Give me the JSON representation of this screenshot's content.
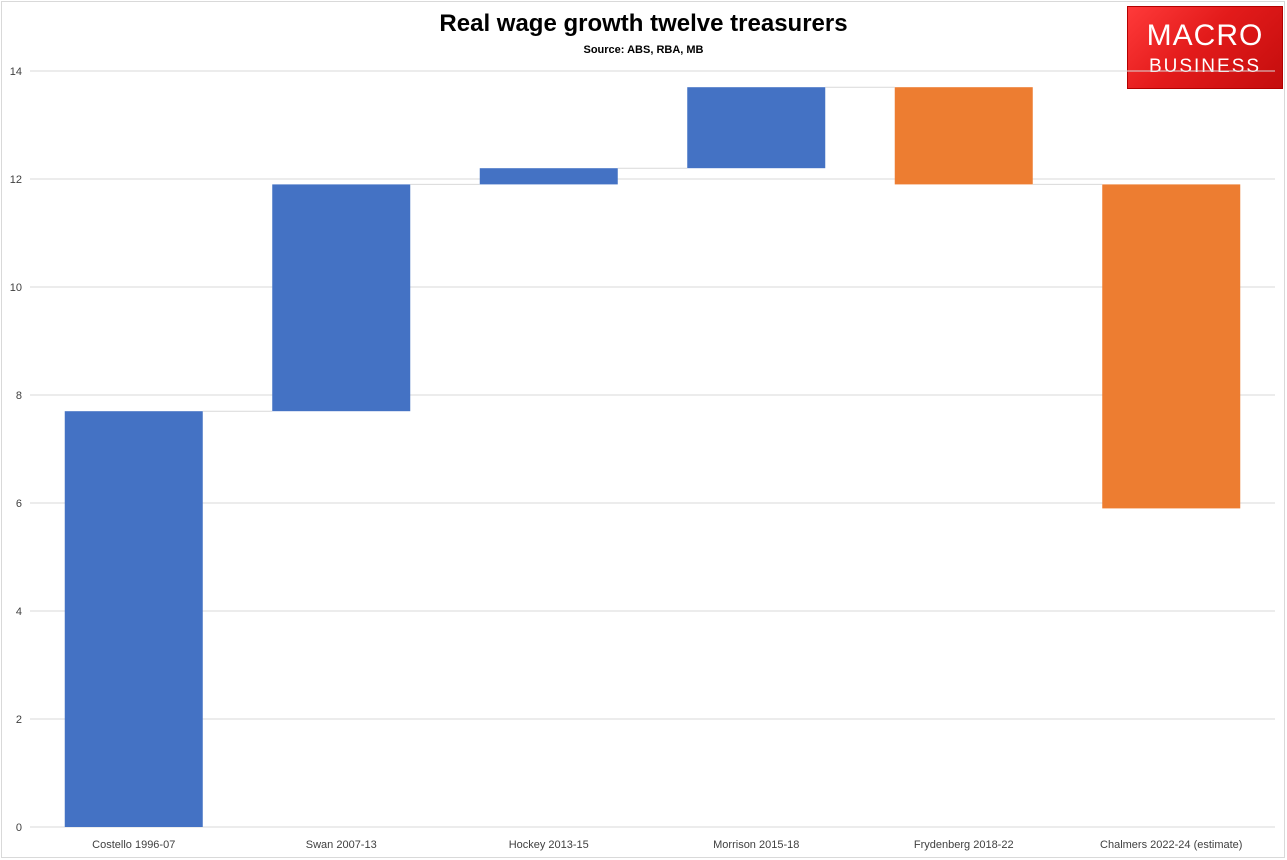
{
  "logo": {
    "line1": "MACRO",
    "line2": "BUSINESS"
  },
  "chart_data": {
    "type": "waterfall",
    "title": "Real wage growth twelve treasurers",
    "subtitle": "Source: ABS, RBA, MB",
    "xlabel": "",
    "ylabel": "",
    "ylim": [
      0,
      14
    ],
    "yticks": [
      0,
      2,
      4,
      6,
      8,
      10,
      12,
      14
    ],
    "grid": true,
    "categories": [
      "Costello 1996-07",
      "Swan 2007-13",
      "Hockey 2013-15",
      "Morrison 2015-18",
      "Frydenberg 2018-22",
      "Chalmers 2022-24 (estimate)"
    ],
    "bars": [
      {
        "start": 0,
        "end": 7.7
      },
      {
        "start": 7.7,
        "end": 11.9
      },
      {
        "start": 11.9,
        "end": 12.2
      },
      {
        "start": 12.2,
        "end": 13.7
      },
      {
        "start": 13.7,
        "end": 11.9
      },
      {
        "start": 11.9,
        "end": 5.9
      }
    ],
    "colors": {
      "increase": "#4472C4",
      "decrease": "#ED7D31",
      "grid": "#d9d9d9",
      "connector": "#d9d9d9"
    }
  }
}
